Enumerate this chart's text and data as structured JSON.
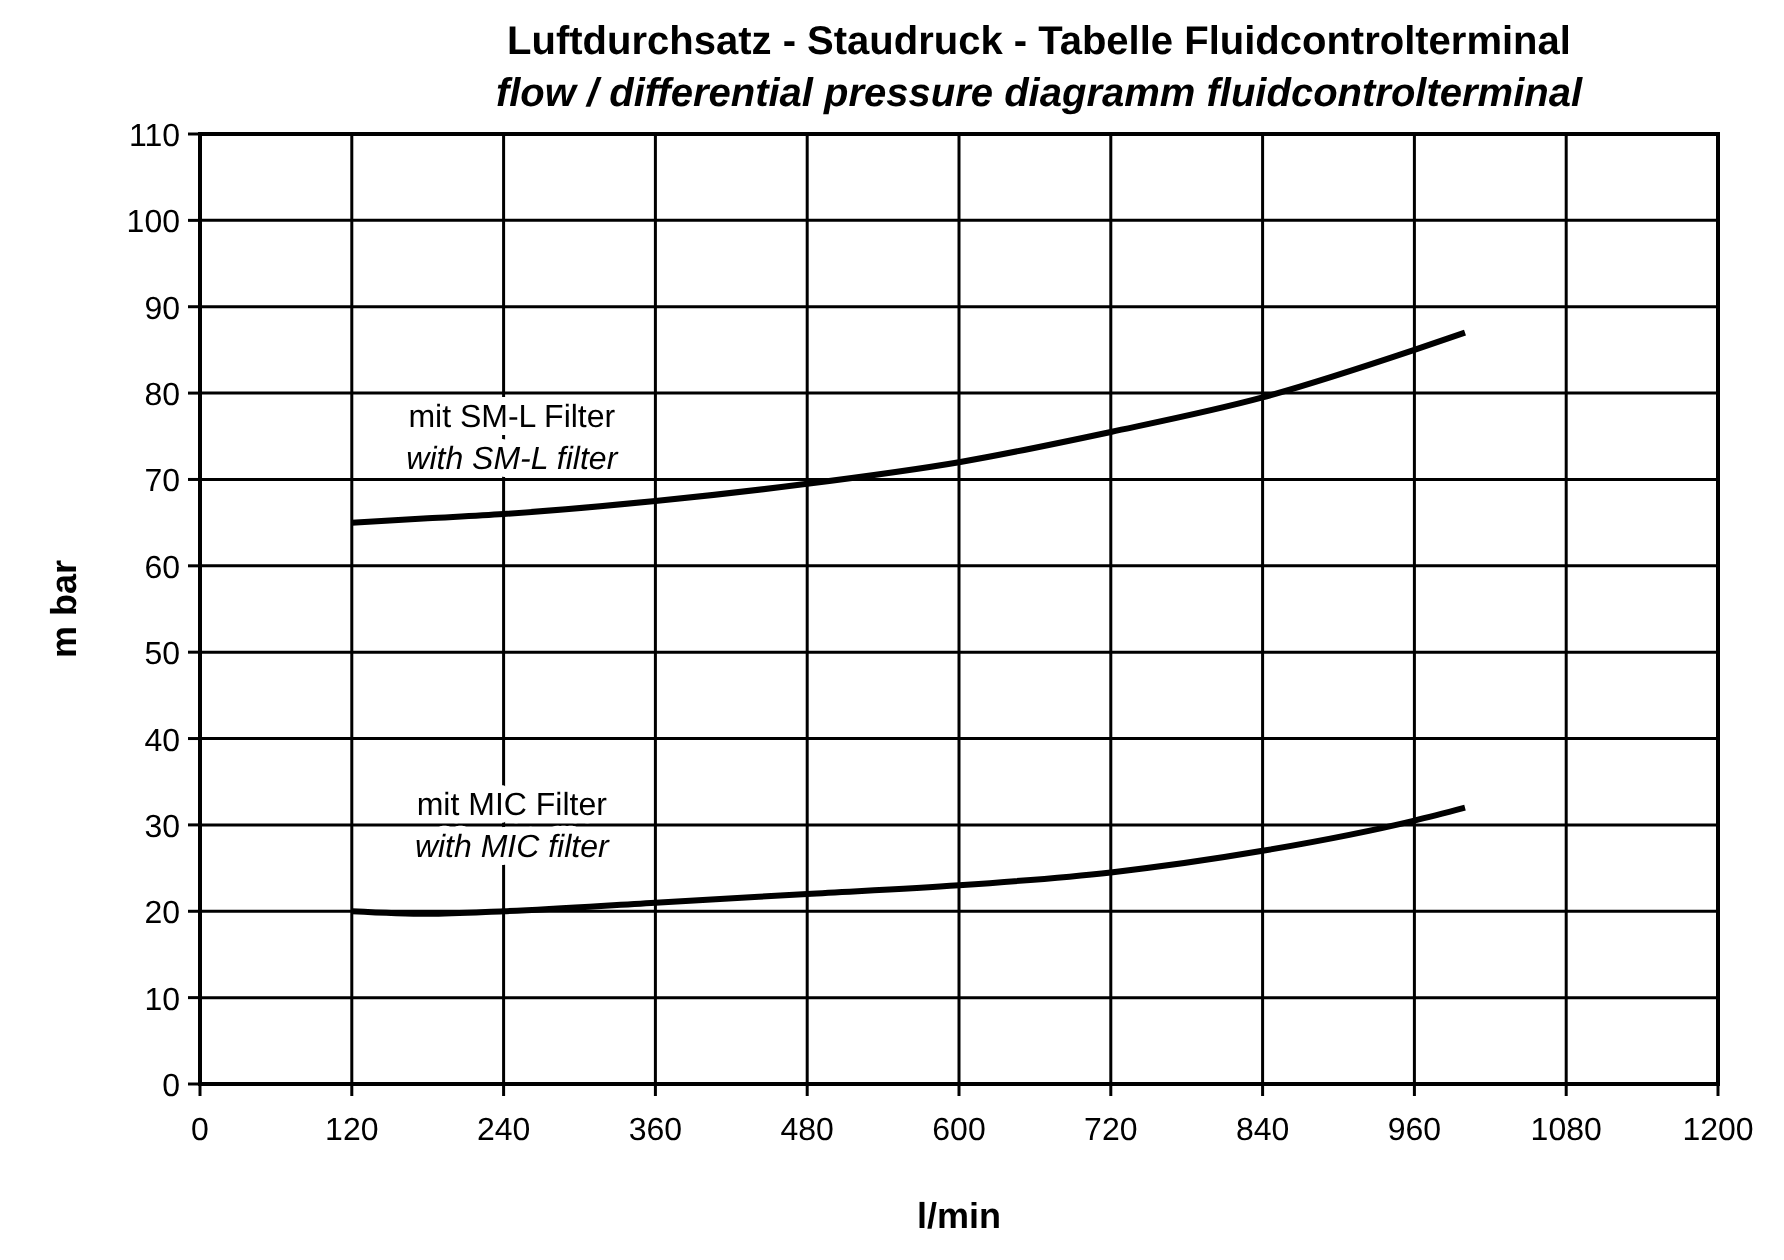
{
  "chart_data": {
    "type": "line",
    "title": "Luftdurchsatz - Staudruck - Tabelle Fluidcontrolterminal",
    "subtitle": "flow / differential pressure diagramm fluidcontrolterminal",
    "xlabel": "l/min",
    "ylabel": "m bar",
    "x": [
      120,
      180,
      240,
      360,
      480,
      600,
      720,
      840,
      960,
      1000
    ],
    "series": [
      {
        "name": "mit SM-L Filter\nwith SM-L filter",
        "color": "#000000",
        "values": [
          65,
          65.5,
          66,
          67.5,
          69.5,
          72,
          75.5,
          79.5,
          85,
          87
        ]
      },
      {
        "name": "mit MIC Filter\nwith MIC filter",
        "color": "#000000",
        "values": [
          20,
          19.7,
          20,
          21,
          22,
          23,
          24.5,
          27,
          30.5,
          32
        ]
      }
    ],
    "xlim": [
      0,
      1200
    ],
    "xticks": [
      0,
      120,
      240,
      360,
      480,
      600,
      720,
      840,
      960,
      1080,
      1200
    ],
    "ylim": [
      0,
      110
    ],
    "yticks": [
      0,
      10,
      20,
      30,
      40,
      50,
      60,
      70,
      80,
      90,
      100,
      110
    ],
    "grid": true,
    "marker": "none",
    "line_style": "solid"
  }
}
